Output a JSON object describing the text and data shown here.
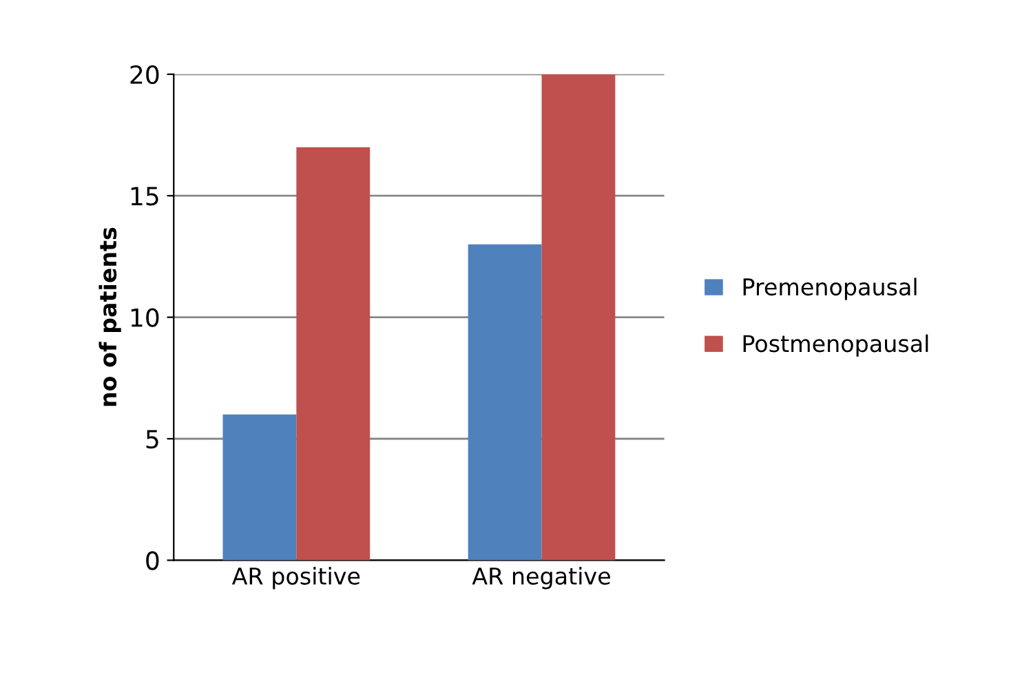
{
  "chart_data": {
    "type": "bar",
    "ylabel": "no of patients",
    "categories": [
      "AR positive",
      "AR negative"
    ],
    "series": [
      {
        "name": "Premenopausal",
        "color": "#4f81bd",
        "values": [
          6,
          13
        ]
      },
      {
        "name": "Postmenopausal",
        "color": "#c0504d",
        "values": [
          17,
          20
        ]
      }
    ],
    "ylim": [
      0,
      20
    ],
    "yticks": [
      0,
      5,
      10,
      15,
      20
    ],
    "grid": "y",
    "legend": "right"
  }
}
